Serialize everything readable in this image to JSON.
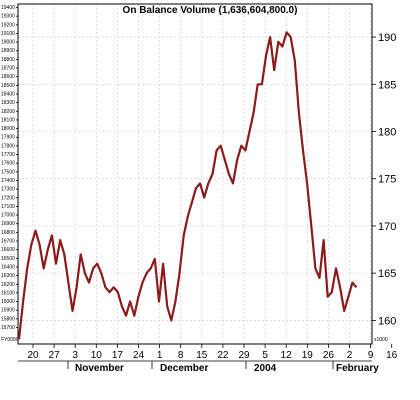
{
  "chart_data": {
    "type": "line",
    "title": "On Balance Volume (1,636,604,800.0)",
    "right_axis": {
      "ticks": [
        "160",
        "165",
        "170",
        "175",
        "180",
        "185",
        "190"
      ],
      "unit_label": "x1000"
    },
    "left_axis": {
      "ticks": [
        "15700",
        "15800",
        "15900",
        "16000",
        "16100",
        "16200",
        "16300",
        "16400",
        "16500",
        "16600",
        "16700",
        "16800",
        "16900",
        "17000",
        "17100",
        "17200",
        "17300",
        "17400",
        "17500",
        "17600",
        "17700",
        "17800",
        "17900",
        "18000",
        "18100",
        "18200",
        "18300",
        "18400",
        "18500",
        "18600",
        "18700",
        "18800",
        "18900",
        "19000",
        "19100",
        "19200",
        "19300",
        "19400"
      ],
      "corner_label": "FY0000"
    },
    "ylim": [
      157.5,
      193.5
    ],
    "x_ticks": [
      "20",
      "27",
      "3",
      "10",
      "17",
      "24",
      "1",
      "8",
      "15",
      "22",
      "29",
      "5",
      "12",
      "19",
      "26",
      "2",
      "9",
      "16"
    ],
    "months": [
      "November",
      "December",
      "2004",
      "February"
    ],
    "series": [
      {
        "color": "#8b1a1a",
        "values": [
          158,
          162,
          165.5,
          168,
          169.5,
          168,
          165.5,
          167.5,
          169,
          166,
          168.5,
          167,
          164,
          161,
          163.5,
          167,
          165,
          164,
          165.5,
          166,
          165,
          163.5,
          163,
          163.5,
          163,
          161.5,
          160.5,
          162,
          160.5,
          162.5,
          164,
          165,
          165.5,
          166.5,
          162,
          166,
          161.5,
          160,
          162,
          165,
          169,
          171,
          172.5,
          174,
          174.5,
          173,
          174.5,
          175.5,
          178,
          178.5,
          177,
          175.5,
          174.5,
          177,
          178.5,
          178,
          180,
          182,
          185,
          185,
          188,
          190,
          186.5,
          189.5,
          189,
          190.5,
          190,
          187.5,
          182,
          178,
          174.5,
          170,
          165.5,
          164.5,
          168.5,
          162.5,
          163,
          165.5,
          163.5,
          161,
          162.5,
          164,
          163.5
        ]
      }
    ]
  }
}
